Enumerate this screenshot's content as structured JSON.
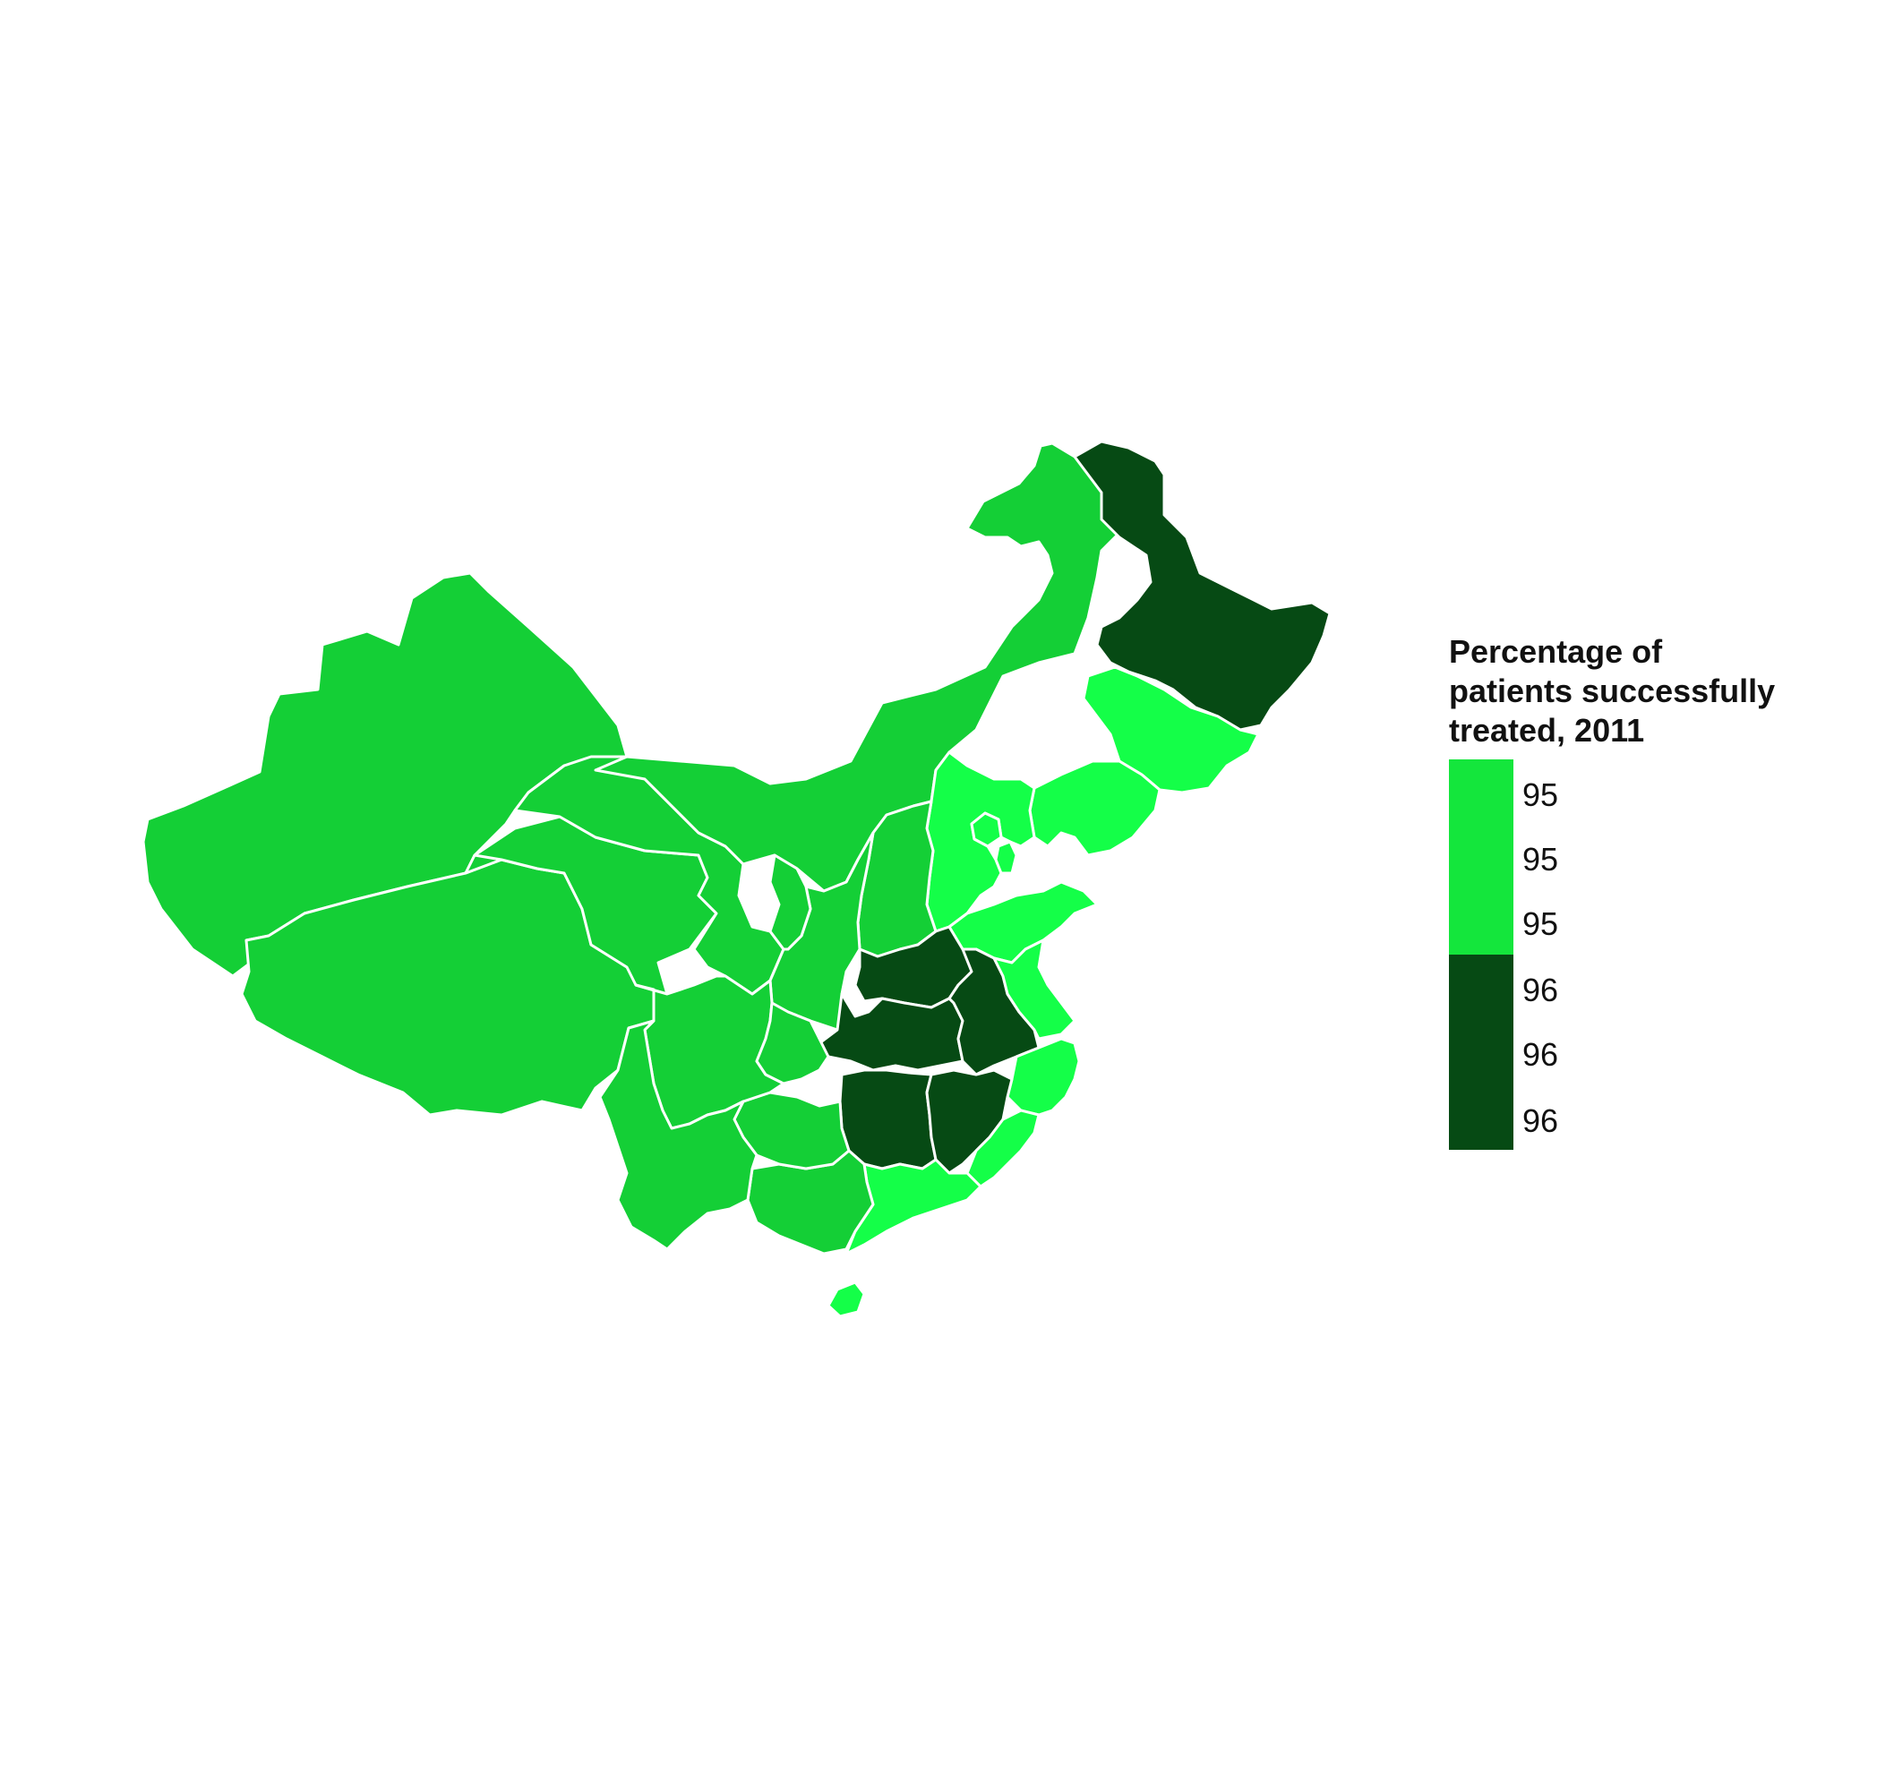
{
  "map": {
    "legend_title_lines": [
      "Percentage of",
      "patients successfully",
      "treated, 2011"
    ],
    "legend_ticks": [
      "95",
      "95",
      "95",
      "96",
      "96",
      "96"
    ],
    "legend_bins": [
      {
        "label": "95",
        "color": "#14e63c"
      },
      {
        "label": "96",
        "color": "#064a14"
      }
    ],
    "colors": {
      "low": "#14cf36",
      "mid": "#14ff48",
      "high": "#064a14",
      "border": "#ffffff",
      "background": "#ffffff"
    },
    "region_names": [
      "Xinjiang",
      "Tibet",
      "Qinghai",
      "Gansu",
      "Inner Mongolia",
      "Heilongjiang",
      "Jilin",
      "Liaoning",
      "Hebei",
      "Beijing",
      "Tianjin",
      "Shandong",
      "Shanxi",
      "Shaanxi",
      "Ningxia",
      "Henan",
      "Hubei",
      "Anhui",
      "Jiangsu",
      "Zhejiang",
      "Hunan",
      "Jiangxi",
      "Fujian",
      "Guangdong",
      "Guangxi",
      "Guizhou",
      "Sichuan",
      "Chongqing",
      "Yunnan",
      "Hainan"
    ],
    "region_classes": {
      "Xinjiang": "low",
      "Tibet": "low",
      "Qinghai": "low",
      "Gansu": "low",
      "Inner Mongolia": "low",
      "Heilongjiang": "high",
      "Jilin": "mid",
      "Liaoning": "mid",
      "Hebei": "mid",
      "Beijing": "mid",
      "Tianjin": "mid",
      "Shandong": "mid",
      "Shanxi": "low",
      "Shaanxi": "low",
      "Ningxia": "low",
      "Henan": "high",
      "Hubei": "high",
      "Anhui": "high",
      "Jiangsu": "mid",
      "Zhejiang": "mid",
      "Hunan": "high",
      "Jiangxi": "high",
      "Fujian": "mid",
      "Guangdong": "mid",
      "Guangxi": "low",
      "Guizhou": "low",
      "Sichuan": "low",
      "Chongqing": "low",
      "Yunnan": "low",
      "Hainan": "mid"
    }
  }
}
